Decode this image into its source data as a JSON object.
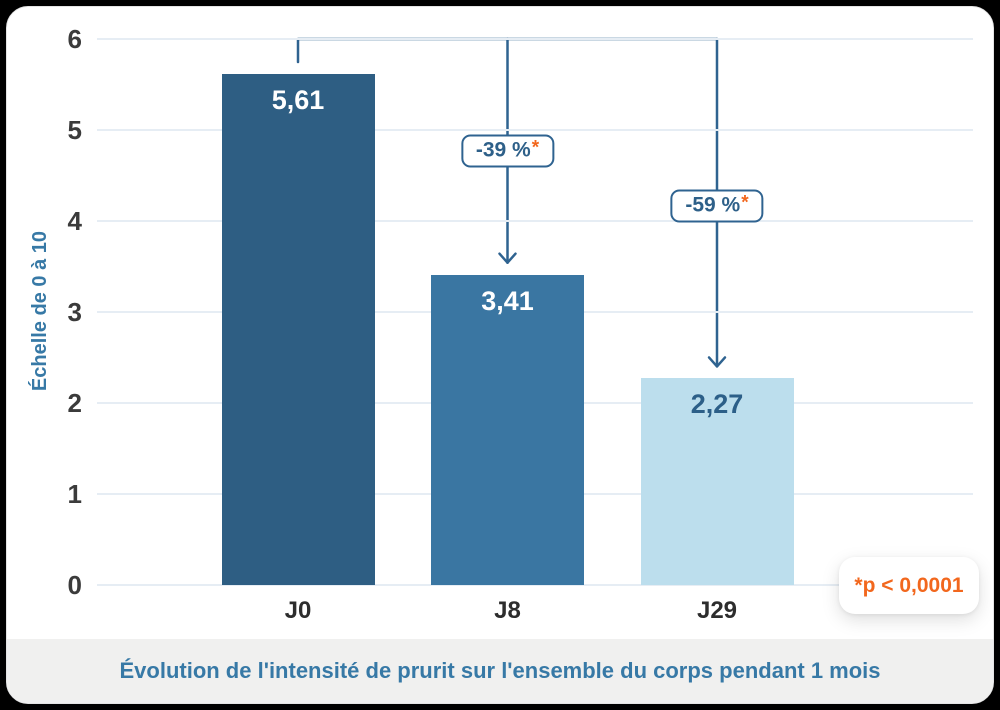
{
  "colors": {
    "bar_dark": "#2E5E83",
    "bar_medium": "#3A76A2",
    "bar_light": "#BCDEED",
    "accent_line": "#2F6390",
    "badge_text_blue": "#2E6089",
    "orange": "#F2671D",
    "axis_label_blue": "#3779A6",
    "grid": "#E6EDF4",
    "tick_text": "#3B3B3B",
    "caption_band_bg": "#F0F0EF"
  },
  "chart_data": {
    "type": "bar",
    "categories": [
      "J0",
      "J8",
      "J29"
    ],
    "values": [
      5.61,
      3.41,
      2.27
    ],
    "value_labels": [
      "5,61",
      "3,41",
      "2,27"
    ],
    "bar_colors": [
      "#2E5E83",
      "#3A76A2",
      "#BCDEED"
    ],
    "value_label_colors": [
      "#FFFFFF",
      "#FFFFFF",
      "#2C5F88"
    ],
    "title": "",
    "xlabel": "",
    "ylabel": "Échelle de 0 à 10",
    "yticks": [
      0,
      1,
      2,
      3,
      4,
      5,
      6
    ],
    "ylim": [
      0,
      6
    ],
    "grid": true,
    "annotations": [
      {
        "label": "-39 %",
        "star": "*",
        "from_bar": 0,
        "to_bar": 1
      },
      {
        "label": "-59 %",
        "star": "*",
        "from_bar": 0,
        "to_bar": 2
      }
    ],
    "pvalue_note": "*p < 0,0001",
    "caption": "Évolution de l'intensité de prurit sur l'ensemble du corps pendant 1 mois"
  }
}
